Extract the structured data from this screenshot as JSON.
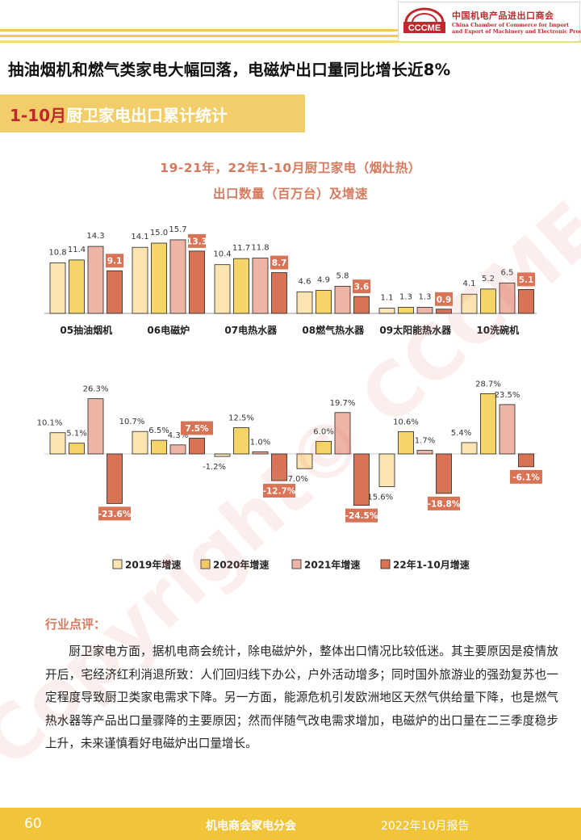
{
  "header": {
    "logo_mark_text": "CCCME",
    "org_name_cn": "中国机电产品进出口商会",
    "org_name_en_line1": "China Chamber of Commerce for Import",
    "org_name_en_line2": "and Export of Machinery and Electronic Products"
  },
  "headline": "抽油烟机和燃气类家电大幅回落，电磁炉出口量同比增长近8%",
  "section": {
    "highlight": "1-10月",
    "title": "厨卫家电出口累计统计"
  },
  "chart_heading": {
    "line1": "19-21年，22年1-10月厨卫家电（烟灶热）",
    "line2": "出口数量（百万台）及增速"
  },
  "colors": {
    "y2019": "#fbe4b1",
    "y2020": "#f5d468",
    "y2021": "#eeb5a6",
    "y2022": "#d97356",
    "accent": "#c0282d",
    "title": "#d57a5e",
    "footer": "#f2c43a"
  },
  "chart_data": [
    {
      "type": "bar",
      "categories": [
        "05抽油烟机",
        "06电磁炉",
        "07电热水器",
        "08燃气热水器",
        "09太阳能热水器",
        "10洗碗机"
      ],
      "series": [
        {
          "name": "2019年增速",
          "values": [
            10.8,
            14.1,
            10.4,
            4.6,
            1.1,
            4.1
          ]
        },
        {
          "name": "2020年增速",
          "values": [
            11.4,
            15.0,
            11.7,
            4.9,
            1.3,
            5.2
          ]
        },
        {
          "name": "2021年增速",
          "values": [
            14.3,
            15.7,
            11.8,
            5.8,
            1.3,
            6.5
          ]
        },
        {
          "name": "22年1-10月增速",
          "values": [
            9.1,
            13.3,
            8.7,
            3.6,
            0.9,
            5.1
          ]
        }
      ],
      "value_labels": [
        [
          "10.8",
          "11.4",
          "14.3",
          "9.1"
        ],
        [
          "14.1",
          "15.0",
          "15.7",
          "13.3"
        ],
        [
          "10.4",
          "11.7",
          "11.8",
          "8.7"
        ],
        [
          "4.6",
          "4.9",
          "5.8",
          "3.6"
        ],
        [
          "1.1",
          "1.3",
          "1.3",
          "0.9"
        ],
        [
          "4.1",
          "5.2",
          "6.5",
          "5.1"
        ]
      ],
      "ylim": [
        0,
        16
      ]
    },
    {
      "type": "bar",
      "categories": [
        "05抽油烟机",
        "06电磁炉",
        "07电热水器",
        "08燃气热水器",
        "09太阳能热水器",
        "10洗碗机"
      ],
      "series": [
        {
          "name": "2019年增速",
          "values": [
            10.1,
            10.7,
            -1.2,
            -7.0,
            -15.6,
            5.4
          ]
        },
        {
          "name": "2020年增速",
          "values": [
            5.1,
            6.5,
            12.5,
            6.0,
            10.6,
            28.7
          ]
        },
        {
          "name": "2021年增速",
          "values": [
            26.3,
            4.3,
            1.0,
            19.7,
            1.7,
            23.5
          ]
        },
        {
          "name": "22年1-10月增速",
          "values": [
            -23.6,
            7.5,
            -12.7,
            -24.5,
            -18.8,
            -6.1
          ]
        }
      ],
      "value_labels": [
        [
          "10.1%",
          "5.1%",
          "26.3%",
          "-23.6%"
        ],
        [
          "10.7%",
          "6.5%",
          "4.3%",
          "7.5%"
        ],
        [
          "-1.2%",
          "12.5%",
          "1.0%",
          "-12.7%"
        ],
        [
          "-7.0%",
          "6.0%",
          "19.7%",
          "-24.5%"
        ],
        [
          "-15.6%",
          "10.6%",
          "1.7%",
          "-18.8%"
        ],
        [
          "5.4%",
          "28.7%",
          "23.5%",
          "-6.1%"
        ]
      ],
      "legend": [
        "2019年增速",
        "2020年增速",
        "2021年增速",
        "22年1-10月增速"
      ],
      "legend_position": "bottom",
      "ylim": [
        -30,
        30
      ]
    }
  ],
  "watermark": "Copyright© CCCME",
  "commentary": {
    "title": "行业点评：",
    "body": "厨卫家电方面，据机电商会统计，除电磁炉外，整体出口情况比较低迷。其主要原因是疫情放开后，宅经济红利消退所致：人们回归线下办公，户外活动增多；同时国外旅游业的强劲复苏也一定程度导致厨卫类家电需求下降。另一方面，能源危机引发欧洲地区天然气供给量下降，也是燃气热水器等产品出口量骤降的主要原因；然而伴随气改电需求增加，电磁炉的出口量在二三季度稳步上升，未来谨慎看好电磁炉出口量增长。"
  },
  "footer": {
    "page_number": "60",
    "org": "机电商会家电分会",
    "report": "2022年10月报告"
  }
}
